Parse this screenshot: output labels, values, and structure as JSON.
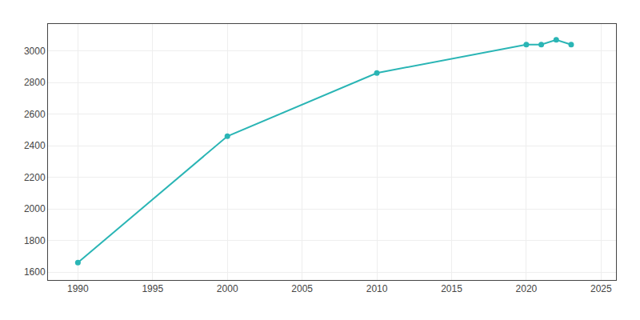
{
  "chart_data": {
    "type": "line",
    "x": [
      1990,
      2000,
      2010,
      2020,
      2021,
      2022,
      2023
    ],
    "values": [
      1660,
      2460,
      2860,
      3040,
      3040,
      3070,
      3040
    ],
    "color": "#2ab5b5",
    "marker": "circle",
    "xlim": [
      1988,
      2026
    ],
    "ylim": [
      1550,
      3170
    ],
    "xticks": [
      1990,
      1995,
      2000,
      2005,
      2010,
      2015,
      2020,
      2025
    ],
    "yticks": [
      1600,
      1800,
      2000,
      2200,
      2400,
      2600,
      2800,
      3000
    ],
    "grid": true
  }
}
